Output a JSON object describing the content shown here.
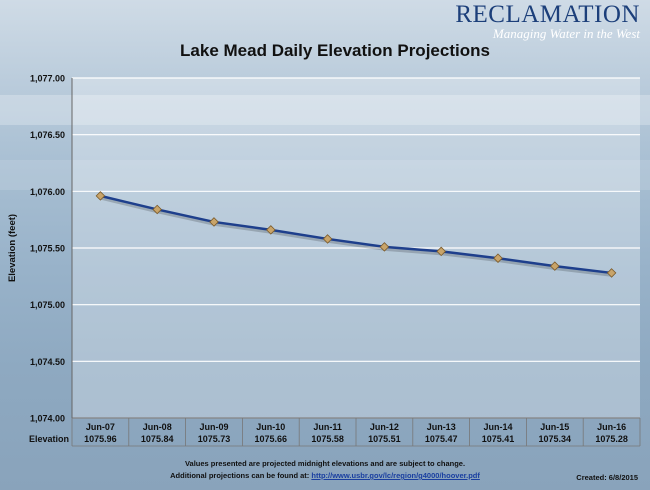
{
  "logo": {
    "name": "RECLAMATION",
    "tagline": "Managing Water in the West"
  },
  "footnotes": {
    "line1": "Values presented are projected midnight elevations and are subject to change.",
    "line2_prefix": "Additional projections can be found at:",
    "line2_link": "http://www.usbr.gov/lc/region/g4000/hoover.pdf",
    "created": "Created: 6/8/2015"
  },
  "colors": {
    "line": "#1e3f8c",
    "marker_fill": "#c8a46a",
    "marker_stroke": "#7a5a2a",
    "grid": "#ffffff"
  },
  "chart_data": {
    "type": "line",
    "title": "Lake Mead Daily Elevation Projections",
    "ylabel": "Elevation (feet)",
    "xlabel": "",
    "ylim": [
      1074.0,
      1077.0
    ],
    "yticks": [
      "1,074.00",
      "1,074.50",
      "1,075.00",
      "1,075.50",
      "1,076.00",
      "1,076.50",
      "1,077.00"
    ],
    "grid": "horizontal",
    "categories": [
      "Jun-07",
      "Jun-08",
      "Jun-09",
      "Jun-10",
      "Jun-11",
      "Jun-12",
      "Jun-13",
      "Jun-14",
      "Jun-15",
      "Jun-16"
    ],
    "series": [
      {
        "name": "Elevation",
        "values": [
          1075.96,
          1075.84,
          1075.73,
          1075.66,
          1075.58,
          1075.51,
          1075.47,
          1075.41,
          1075.34,
          1075.28
        ]
      }
    ],
    "table_row_label": "Elevation",
    "table_values": [
      "1075.96",
      "1075.84",
      "1075.73",
      "1075.66",
      "1075.58",
      "1075.51",
      "1075.47",
      "1075.41",
      "1075.34",
      "1075.28"
    ]
  }
}
